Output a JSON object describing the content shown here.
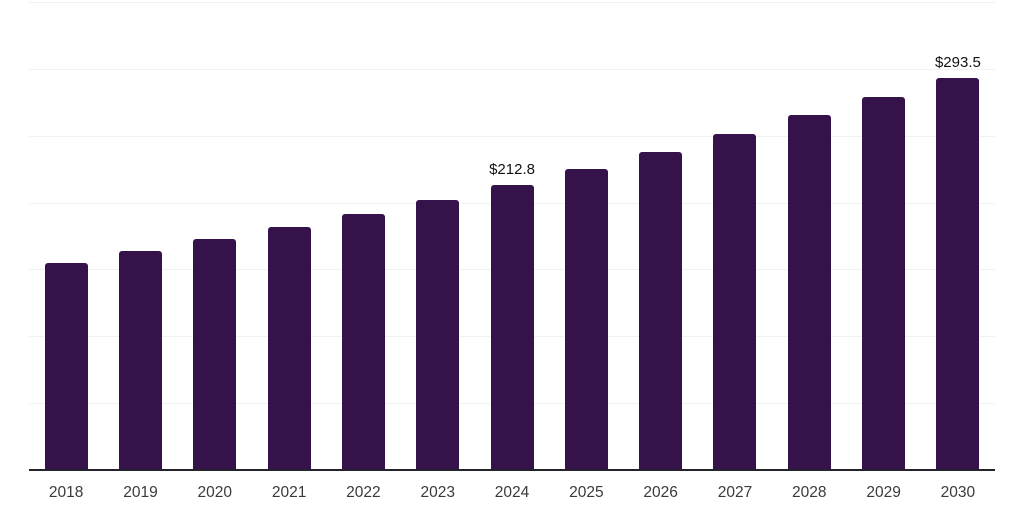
{
  "chart_data": {
    "type": "bar",
    "title": "",
    "xlabel": "",
    "ylabel": "",
    "categories": [
      "2018",
      "2019",
      "2020",
      "2021",
      "2022",
      "2023",
      "2024",
      "2025",
      "2026",
      "2027",
      "2028",
      "2029",
      "2030"
    ],
    "values": [
      154.8,
      163.5,
      172.5,
      181.5,
      191.6,
      202.2,
      212.8,
      224.9,
      237.6,
      251.4,
      265.3,
      278.9,
      293.5
    ],
    "data_labels": [
      "",
      "",
      "",
      "",
      "",
      "",
      "$212.8",
      "",
      "",
      "",
      "",
      "",
      "$293.5"
    ],
    "value_prefix": "$",
    "ylim": [
      0,
      350
    ],
    "gridline_step": 50,
    "grid": true,
    "legend": false
  },
  "colors": {
    "background": "#FFFFFF",
    "bar": "#36124B",
    "gridline": "#F1F1F1",
    "axis_line": "#23232B",
    "tick_label": "#3A3A3A",
    "data_label": "#121212"
  }
}
